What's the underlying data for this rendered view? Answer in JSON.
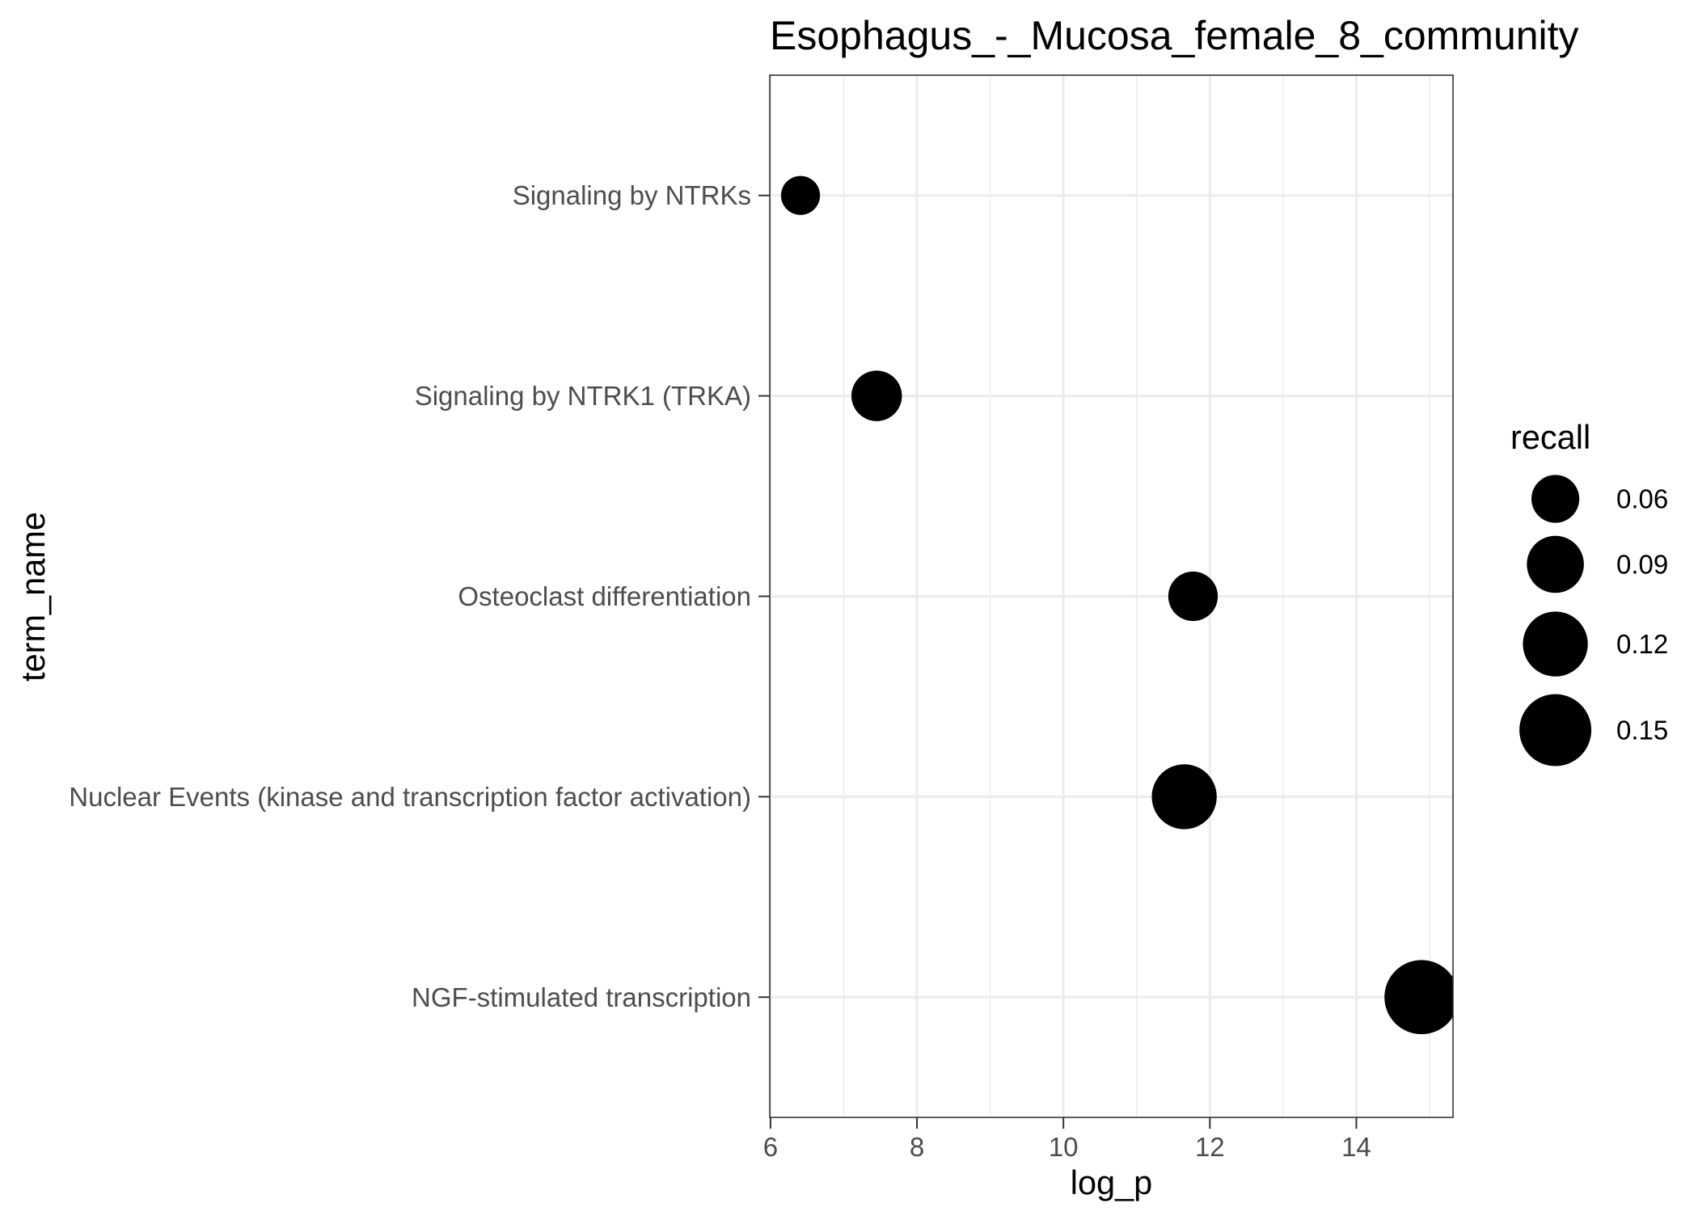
{
  "chart_data": {
    "type": "scatter",
    "title": "Esophagus_-_Mucosa_female_8_community",
    "xlabel": "log_p",
    "ylabel": "term_name",
    "categories": [
      "Signaling by NTRKs",
      "Signaling by NTRK1 (TRKA)",
      "Osteoclast differentiation",
      "Nuclear Events (kinase and transcription factor activation)",
      "NGF-stimulated transcription"
    ],
    "log_p": [
      6.41,
      7.45,
      11.77,
      11.65,
      14.89
    ],
    "recall": [
      0.036,
      0.068,
      0.065,
      0.12,
      0.16
    ],
    "xlim": [
      5.99,
      15.32
    ],
    "x_ticks": [
      6,
      8,
      10,
      12,
      14
    ],
    "size_legend": {
      "title": "recall",
      "values": [
        0.06,
        0.09,
        0.12,
        0.15
      ],
      "labels": [
        "0.06",
        "0.09",
        "0.12",
        "0.15"
      ]
    },
    "grid": true,
    "legend_position": "right",
    "point_color": "#000000",
    "gridline_color": "#ebebeb",
    "panel_border_color": "#333333"
  }
}
